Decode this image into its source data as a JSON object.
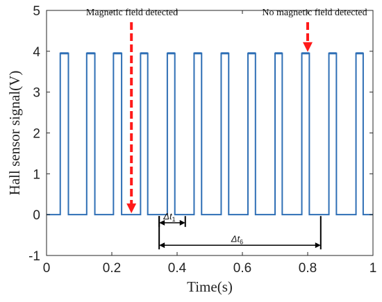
{
  "chart_data": {
    "type": "line",
    "title": "",
    "xlabel": "Time(s)",
    "ylabel": "Hall sensor signal(V)",
    "xlim": [
      0,
      1
    ],
    "ylim": [
      -1,
      5
    ],
    "xticks": [
      0,
      0.2,
      0.4,
      0.6,
      0.8,
      1
    ],
    "xtick_labels": [
      "0",
      "0.2",
      "0.4",
      "0.6",
      "0.8",
      "1"
    ],
    "yticks": [
      -1,
      0,
      1,
      2,
      3,
      4,
      5
    ],
    "ytick_labels": [
      "-1",
      "0",
      "1",
      "2",
      "3",
      "4",
      "5"
    ],
    "grid": false,
    "line_color": "#2f6fb5",
    "series": [
      {
        "name": "",
        "pulse_high": 3.95,
        "pulse_low": 0,
        "pulses": [
          [
            0.042,
            0.067
          ],
          [
            0.123,
            0.148
          ],
          [
            0.205,
            0.23
          ],
          [
            0.288,
            0.31
          ],
          [
            0.37,
            0.393
          ],
          [
            0.452,
            0.475
          ],
          [
            0.535,
            0.558
          ],
          [
            0.617,
            0.64
          ],
          [
            0.7,
            0.722
          ],
          [
            0.782,
            0.805
          ],
          [
            0.865,
            0.888
          ],
          [
            0.948,
            0.97
          ]
        ]
      }
    ],
    "annotations": [
      {
        "text": "Magnetic field detected",
        "arrow_x": 0.26,
        "arrow_to_y": 0,
        "color": "#ff1a1a"
      },
      {
        "text": "No magnetic field detected",
        "arrow_x": 0.8,
        "arrow_to_y": 3.95,
        "color": "#ff1a1a"
      }
    ],
    "intervals": [
      {
        "label_main": "Δt",
        "label_sub": "1",
        "x_start": 0.345,
        "x_end": 0.425,
        "y": -0.2,
        "marker_bottom": -0.3
      },
      {
        "label_main": "Δt",
        "label_sub": "6",
        "x_start": 0.345,
        "x_end": 0.84,
        "y": -0.75,
        "marker_bottom": -0.85
      }
    ]
  }
}
